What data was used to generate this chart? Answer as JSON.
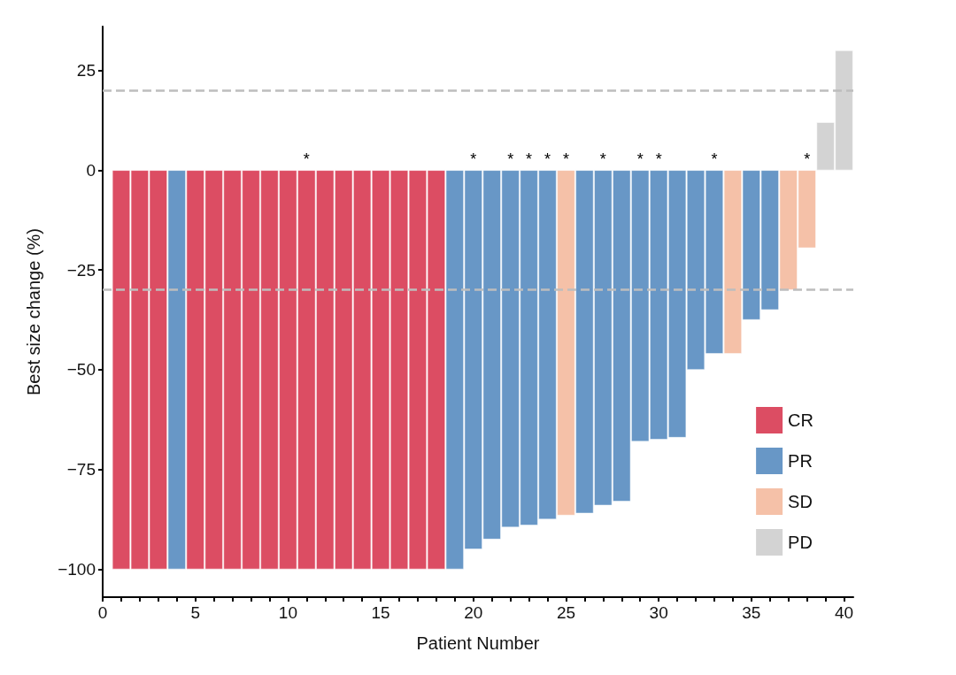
{
  "chart_data": {
    "type": "bar",
    "xlabel": "Patient Number",
    "ylabel": "Best size change (%)",
    "x": [
      1,
      2,
      3,
      4,
      5,
      6,
      7,
      8,
      9,
      10,
      11,
      12,
      13,
      14,
      15,
      16,
      17,
      18,
      19,
      20,
      21,
      22,
      23,
      24,
      25,
      26,
      27,
      28,
      29,
      30,
      31,
      32,
      33,
      34,
      35,
      36,
      37,
      38,
      39,
      40
    ],
    "series": [
      {
        "name": "CR",
        "color": "#dc4d63",
        "values": [
          -100,
          -100,
          -100,
          null,
          -100,
          -100,
          -100,
          -100,
          -100,
          -100,
          -100,
          -100,
          -100,
          -100,
          -100,
          -100,
          -100,
          -100,
          null,
          null,
          null,
          null,
          null,
          null,
          null,
          null,
          null,
          null,
          null,
          null,
          null,
          null,
          null,
          null,
          null,
          null,
          null,
          null,
          null,
          null
        ]
      },
      {
        "name": "PR",
        "color": "#6897c6",
        "values": [
          null,
          null,
          null,
          -100,
          null,
          null,
          null,
          null,
          null,
          null,
          null,
          null,
          null,
          null,
          null,
          null,
          null,
          null,
          -100,
          -95,
          -92.5,
          -89.5,
          -89,
          -87.5,
          null,
          -86,
          -84,
          -83,
          -68,
          -67.5,
          -67,
          -50,
          -46,
          null,
          -37.5,
          -35,
          null,
          null,
          null,
          null
        ]
      },
      {
        "name": "SD",
        "color": "#f5c1a8",
        "values": [
          null,
          null,
          null,
          null,
          null,
          null,
          null,
          null,
          null,
          null,
          null,
          null,
          null,
          null,
          null,
          null,
          null,
          null,
          null,
          null,
          null,
          null,
          null,
          null,
          -86.5,
          null,
          null,
          null,
          null,
          null,
          null,
          null,
          null,
          -46,
          null,
          null,
          -30,
          -19.5,
          null,
          null
        ]
      },
      {
        "name": "PD",
        "color": "#d3d3d3",
        "values": [
          null,
          null,
          null,
          null,
          null,
          null,
          null,
          null,
          null,
          null,
          null,
          null,
          null,
          null,
          null,
          null,
          null,
          null,
          null,
          null,
          null,
          null,
          null,
          null,
          null,
          null,
          null,
          null,
          null,
          null,
          null,
          null,
          null,
          null,
          null,
          null,
          null,
          null,
          12,
          30
        ]
      }
    ],
    "xlim": [
      0,
      40.5
    ],
    "xticks": [
      0,
      {
        "value": 1,
        "label": null
      },
      {
        "value": 2,
        "label": null
      },
      {
        "value": 3,
        "label": null
      },
      {
        "value": 4,
        "label": null
      },
      5,
      {
        "value": 6,
        "label": null
      },
      {
        "value": 7,
        "label": null
      },
      {
        "value": 8,
        "label": null
      },
      {
        "value": 9,
        "label": null
      },
      10,
      {
        "value": 11,
        "label": null
      },
      {
        "value": 12,
        "label": null
      },
      {
        "value": 13,
        "label": null
      },
      {
        "value": 14,
        "label": null
      },
      15,
      {
        "value": 16,
        "label": null
      },
      {
        "value": 17,
        "label": null
      },
      {
        "value": 18,
        "label": null
      },
      {
        "value": 19,
        "label": null
      },
      20,
      {
        "value": 21,
        "label": null
      },
      {
        "value": 22,
        "label": null
      },
      {
        "value": 23,
        "label": null
      },
      {
        "value": 24,
        "label": null
      },
      25,
      {
        "value": 26,
        "label": null
      },
      {
        "value": 27,
        "label": null
      },
      {
        "value": 28,
        "label": null
      },
      {
        "value": 29,
        "label": null
      },
      30,
      {
        "value": 31,
        "label": null
      },
      {
        "value": 32,
        "label": null
      },
      {
        "value": 33,
        "label": null
      },
      {
        "value": 34,
        "label": null
      },
      35,
      {
        "value": 36,
        "label": null
      },
      {
        "value": 37,
        "label": null
      },
      {
        "value": 38,
        "label": null
      },
      {
        "value": 39,
        "label": null
      },
      40
    ],
    "ylim": [
      -107,
      36
    ],
    "yticks": [
      -100,
      -75,
      -50,
      -25,
      0,
      25
    ],
    "ref_lines": [
      {
        "axis": "y",
        "value": 20,
        "color": "#bdbdbd",
        "line_style": "dashed"
      },
      {
        "axis": "y",
        "value": -30,
        "color": "#bdbdbd",
        "line_style": "dashed"
      }
    ],
    "annotations": [
      {
        "text": "*",
        "x": 11,
        "y": 0
      },
      {
        "text": "*",
        "x": 20,
        "y": 0
      },
      {
        "text": "*",
        "x": 22,
        "y": 0
      },
      {
        "text": "*",
        "x": 23,
        "y": 0
      },
      {
        "text": "*",
        "x": 24,
        "y": 0
      },
      {
        "text": "*",
        "x": 25,
        "y": 0
      },
      {
        "text": "*",
        "x": 27,
        "y": 0
      },
      {
        "text": "*",
        "x": 29,
        "y": 0
      },
      {
        "text": "*",
        "x": 30,
        "y": 0
      },
      {
        "text": "*",
        "x": 33,
        "y": 0
      },
      {
        "text": "*",
        "x": 38,
        "y": 0
      }
    ],
    "legend": "bottom right",
    "grid": false
  }
}
